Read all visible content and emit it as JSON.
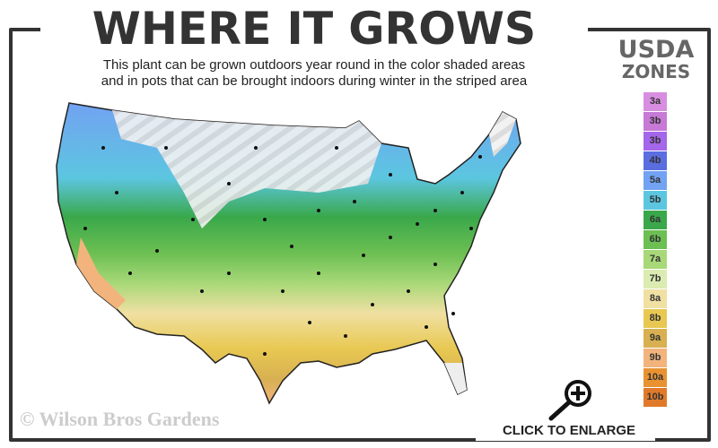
{
  "header": {
    "title": "WHERE IT GROWS",
    "subtitle_line1": "This plant can be grown outdoors year round in the color shaded areas",
    "subtitle_line2": "and in pots that can be brought indoors during winter in the striped area"
  },
  "legend": {
    "title_line1": "USDA",
    "title_line2": "ZONES",
    "zones": [
      {
        "label": "3a",
        "color": "#d88ee0"
      },
      {
        "label": "3b",
        "color": "#c67ad6"
      },
      {
        "label": "3b",
        "color": "#a466ea"
      },
      {
        "label": "4b",
        "color": "#5a6ee0"
      },
      {
        "label": "5a",
        "color": "#72a2f2"
      },
      {
        "label": "5b",
        "color": "#5cc6e0"
      },
      {
        "label": "6a",
        "color": "#3aa84a"
      },
      {
        "label": "6b",
        "color": "#6cbf52"
      },
      {
        "label": "7a",
        "color": "#a8d878"
      },
      {
        "label": "7b",
        "color": "#dcebb2"
      },
      {
        "label": "8a",
        "color": "#f0e0a2"
      },
      {
        "label": "8b",
        "color": "#e8c852"
      },
      {
        "label": "9a",
        "color": "#d8b052"
      },
      {
        "label": "9b",
        "color": "#f2b47c"
      },
      {
        "label": "10a",
        "color": "#e89232"
      },
      {
        "label": "10b",
        "color": "#e07a2a"
      }
    ]
  },
  "footer": {
    "copyright": "© Wilson Bros Gardens",
    "enlarge_label": "CLICK TO ENLARGE",
    "enlarge_icon": "zoom-in-magnifier-icon"
  }
}
